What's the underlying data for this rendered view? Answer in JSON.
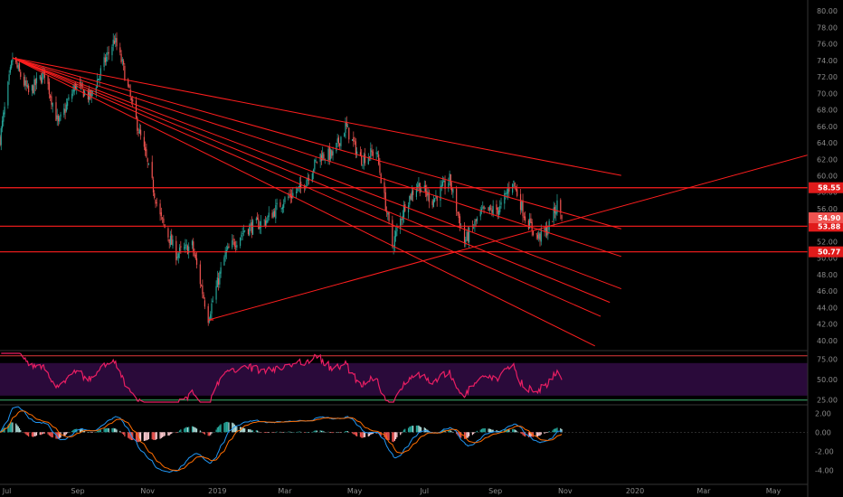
{
  "colors": {
    "background": "#000000",
    "up": "#26a69a",
    "down": "#ef5350",
    "trendline": "#ff1e1e",
    "rsi": "#e91e63",
    "rsi_band": "#2a0a3a",
    "macd": "#2196f3",
    "signal": "#ff6d00",
    "axis_text": "#8a8a8a"
  },
  "chart_data": [
    {
      "type": "candlestick",
      "name": "price",
      "ylim": [
        39,
        81
      ],
      "y_ticks": [
        "40.00",
        "42.00",
        "44.00",
        "46.00",
        "48.00",
        "50.00",
        "52.00",
        "54.00",
        "56.00",
        "58.00",
        "60.00",
        "62.00",
        "64.00",
        "66.00",
        "68.00",
        "70.00",
        "72.00",
        "74.00",
        "76.00",
        "78.00",
        "80.00"
      ],
      "x_ticks": [
        "Jul",
        "Sep",
        "Nov",
        "2019",
        "Mar",
        "May",
        "Jul",
        "Sep",
        "Nov",
        "2020",
        "Mar",
        "May"
      ],
      "x_range": [
        "2018-06-25",
        "2020-05-31"
      ],
      "anchors": [
        [
          "2018-06-25",
          64.5
        ],
        [
          "2018-07-06",
          74.3
        ],
        [
          "2018-07-20",
          70.0
        ],
        [
          "2018-08-03",
          72.5
        ],
        [
          "2018-08-15",
          66.2
        ],
        [
          "2018-08-30",
          71.0
        ],
        [
          "2018-09-12",
          69.5
        ],
        [
          "2018-09-25",
          74.0
        ],
        [
          "2018-10-03",
          76.5
        ],
        [
          "2018-10-10",
          73.5
        ],
        [
          "2018-10-18",
          68.8
        ],
        [
          "2018-10-30",
          62.5
        ],
        [
          "2018-11-12",
          55.0
        ],
        [
          "2018-11-26",
          50.5
        ],
        [
          "2018-12-10",
          51.5
        ],
        [
          "2018-12-24",
          42.8
        ],
        [
          "2019-01-08",
          50.5
        ],
        [
          "2019-01-25",
          53.5
        ],
        [
          "2019-02-12",
          54.5
        ],
        [
          "2019-02-28",
          57.0
        ],
        [
          "2019-03-15",
          58.5
        ],
        [
          "2019-04-01",
          62.5
        ],
        [
          "2019-04-12",
          62.5
        ],
        [
          "2019-04-23",
          66.0
        ],
        [
          "2019-05-06",
          62.0
        ],
        [
          "2019-05-20",
          63.0
        ],
        [
          "2019-06-03",
          51.5
        ],
        [
          "2019-06-14",
          56.5
        ],
        [
          "2019-06-25",
          59.0
        ],
        [
          "2019-07-08",
          57.0
        ],
        [
          "2019-07-23",
          59.5
        ],
        [
          "2019-08-05",
          52.0
        ],
        [
          "2019-08-20",
          55.5
        ],
        [
          "2019-09-05",
          56.0
        ],
        [
          "2019-09-16",
          59.5
        ],
        [
          "2019-09-27",
          55.0
        ],
        [
          "2019-10-08",
          52.5
        ],
        [
          "2019-10-17",
          53.5
        ],
        [
          "2019-10-25",
          56.5
        ],
        [
          "2019-10-29",
          55.2
        ]
      ],
      "horizontal_levels": [
        {
          "value": 58.55,
          "label": "58.55"
        },
        {
          "value": 53.88,
          "label": "53.88"
        },
        {
          "value": 50.77,
          "label": "50.77"
        }
      ],
      "last_price": {
        "value": 54.9,
        "label": "54.90"
      },
      "fan_origin": [
        "2018-07-06",
        74.3
      ],
      "fan_lines": [
        {
          "through": [
            "2019-04-23",
            66.5
          ],
          "end_date": "2019-12-20"
        },
        {
          "through": [
            "2019-06-25",
            60.5
          ],
          "end_date": "2019-12-20"
        },
        {
          "through": [
            "2019-07-23",
            57.0
          ],
          "end_date": "2019-12-20"
        },
        {
          "through": [
            "2019-08-05",
            53.5
          ],
          "end_date": "2019-12-20"
        },
        {
          "through": [
            "2019-08-20",
            51.0
          ],
          "end_date": "2019-12-10"
        },
        {
          "through": [
            "2019-08-05",
            50.2
          ],
          "end_date": "2019-12-02"
        },
        {
          "through": [
            "2019-06-03",
            51.5
          ],
          "end_date": "2019-11-27"
        }
      ],
      "rising_line": {
        "start": [
          "2018-12-24",
          42.5
        ],
        "through": [
          "2019-10-08",
          53.5
        ],
        "end_date": "2020-05-31"
      }
    },
    {
      "type": "line",
      "name": "rsi",
      "ylim": [
        22,
        82
      ],
      "y_ticks": [
        "25.00",
        "50.00",
        "75.00"
      ],
      "band": [
        30,
        70
      ],
      "upper_line": 79,
      "lower_line": 24.5
    },
    {
      "type": "bar",
      "name": "macd",
      "ylim": [
        -5.2,
        2.5
      ],
      "y_ticks": [
        "2.00",
        "0.00",
        "-2.00",
        "-4.00"
      ]
    }
  ]
}
